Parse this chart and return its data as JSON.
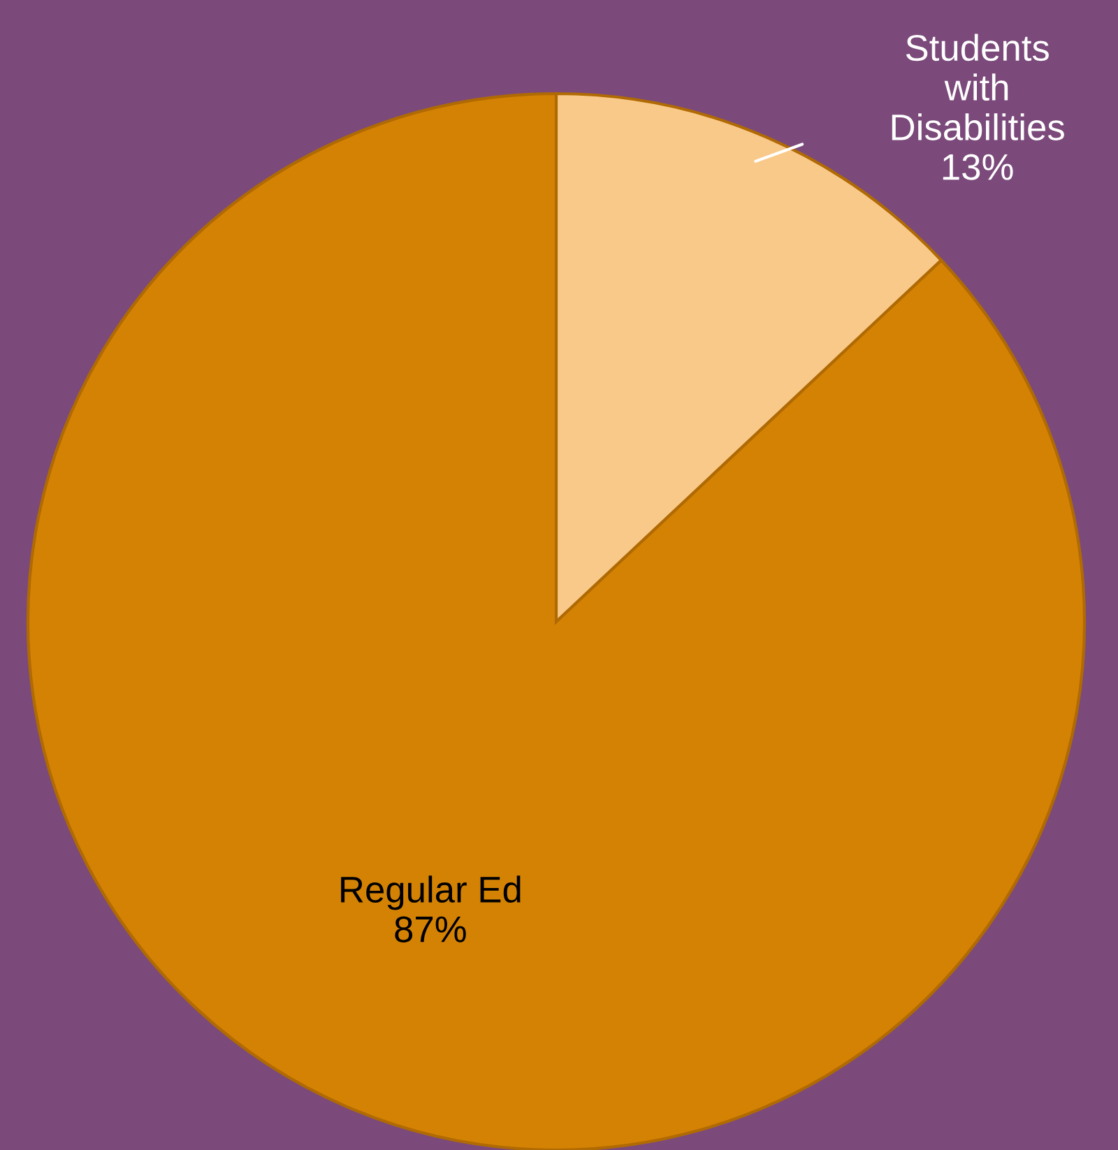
{
  "chart_data": {
    "type": "pie",
    "categories": [
      "Students with Disabilities",
      "Regular Ed"
    ],
    "values": [
      13,
      87
    ],
    "value_labels": [
      "13%",
      "87%"
    ],
    "colors": [
      "#f9c98a",
      "#d48204"
    ]
  }
}
